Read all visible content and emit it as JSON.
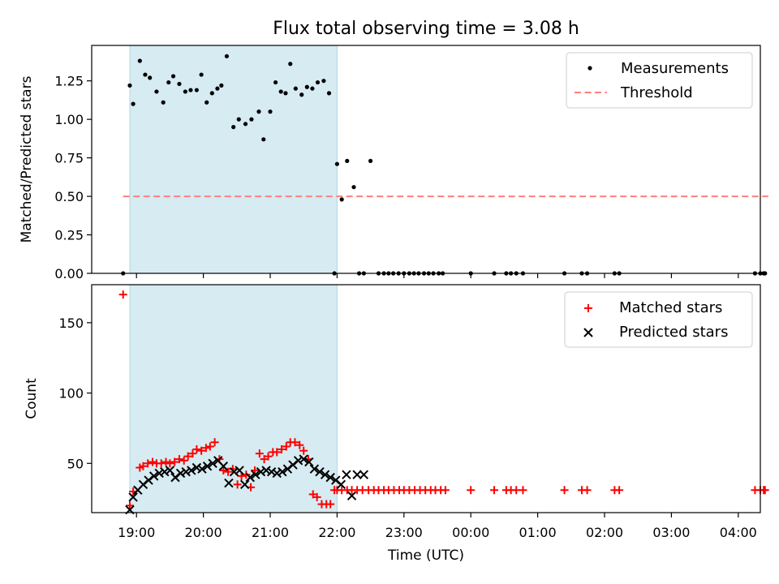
{
  "chart_data": {
    "type": "scatter",
    "title": "Flux total observing time = 3.08 h",
    "xlabel": "Time (UTC)",
    "x_unit": "hours since 19:00 UTC",
    "xlim": [
      -0.67,
      9.33
    ],
    "xticks": [
      {
        "value": 0,
        "label": "19:00"
      },
      {
        "value": 1,
        "label": "20:00"
      },
      {
        "value": 2,
        "label": "21:00"
      },
      {
        "value": 3,
        "label": "22:00"
      },
      {
        "value": 4,
        "label": "23:00"
      },
      {
        "value": 5,
        "label": "00:00"
      },
      {
        "value": 6,
        "label": "01:00"
      },
      {
        "value": 7,
        "label": "02:00"
      },
      {
        "value": 8,
        "label": "03:00"
      },
      {
        "value": 9,
        "label": "04:00"
      }
    ],
    "observing_window": {
      "start": -0.1,
      "end": 3.0,
      "color": "#add8e6"
    },
    "panels": [
      {
        "id": "ratio",
        "ylabel": "Matched/Predicted stars",
        "ylim": [
          0,
          1.48
        ],
        "yticks": [
          {
            "value": 0,
            "label": "0.00"
          },
          {
            "value": 0.25,
            "label": "0.25"
          },
          {
            "value": 0.5,
            "label": "0.50"
          },
          {
            "value": 0.75,
            "label": "0.75"
          },
          {
            "value": 1.0,
            "label": "1.00"
          },
          {
            "value": 1.25,
            "label": "1.25"
          }
        ],
        "legend": [
          {
            "label": "Measurements",
            "marker": "dot",
            "color": "#000000"
          },
          {
            "label": "Threshold",
            "marker": "dashed-line",
            "color": "#ff7f7f"
          }
        ],
        "threshold": {
          "value": 0.5,
          "x_start": -0.2,
          "x_end": 9.45,
          "color": "#ff7f7f"
        },
        "series": [
          {
            "name": "Measurements",
            "x": [
              -0.2,
              -0.1,
              -0.05,
              0.05,
              0.13,
              0.2,
              0.3,
              0.4,
              0.48,
              0.55,
              0.64,
              0.73,
              0.81,
              0.9,
              0.97,
              1.05,
              1.13,
              1.21,
              1.27,
              1.35,
              1.45,
              1.53,
              1.63,
              1.72,
              1.83,
              1.9,
              2.0,
              2.08,
              2.16,
              2.23,
              2.3,
              2.38,
              2.47,
              2.55,
              2.63,
              2.71,
              2.8,
              2.88,
              2.96,
              3.0,
              3.07,
              3.15,
              3.25,
              3.33,
              3.4,
              3.5,
              3.62,
              3.7,
              3.77,
              3.84,
              3.92,
              4.0,
              4.08,
              4.15,
              4.22,
              4.3,
              4.37,
              4.44,
              4.52,
              4.58,
              5.0,
              5.35,
              5.53,
              5.6,
              5.68,
              5.78,
              6.4,
              6.66,
              6.74,
              7.15,
              7.22,
              9.25,
              9.33,
              9.38,
              9.4
            ],
            "y": [
              0,
              1.22,
              1.1,
              1.38,
              1.29,
              1.27,
              1.18,
              1.11,
              1.24,
              1.28,
              1.23,
              1.18,
              1.19,
              1.19,
              1.29,
              1.11,
              1.17,
              1.2,
              1.22,
              1.41,
              0.95,
              1.0,
              0.97,
              1.0,
              1.05,
              0.87,
              1.05,
              1.24,
              1.18,
              1.17,
              1.36,
              1.2,
              1.16,
              1.21,
              1.2,
              1.24,
              1.25,
              1.17,
              0,
              0.71,
              0.48,
              0.73,
              0.56,
              0,
              0,
              0.73,
              0,
              0,
              0,
              0,
              0,
              0,
              0,
              0,
              0,
              0,
              0,
              0,
              0,
              0,
              0,
              0,
              0,
              0,
              0,
              0,
              0,
              0,
              0,
              0,
              0,
              0,
              0,
              0,
              0
            ]
          }
        ]
      },
      {
        "id": "count",
        "ylabel": "Count",
        "ylim": [
          15,
          177
        ],
        "yticks": [
          {
            "value": 50,
            "label": "50"
          },
          {
            "value": 100,
            "label": "100"
          },
          {
            "value": 150,
            "label": "150"
          }
        ],
        "legend": [
          {
            "label": "Matched stars",
            "marker": "plus",
            "color": "#ff0000"
          },
          {
            "label": "Predicted stars",
            "marker": "x",
            "color": "#000000"
          }
        ],
        "series": [
          {
            "name": "Matched stars",
            "marker": "plus",
            "color": "#ff0000",
            "x": [
              -0.2,
              -0.1,
              -0.05,
              0.05,
              0.1,
              0.17,
              0.24,
              0.3,
              0.37,
              0.44,
              0.5,
              0.57,
              0.64,
              0.71,
              0.77,
              0.84,
              0.9,
              0.97,
              1.04,
              1.1,
              1.17,
              1.24,
              1.3,
              1.37,
              1.44,
              1.51,
              1.57,
              1.64,
              1.71,
              1.77,
              1.84,
              1.91,
              1.97,
              2.04,
              2.1,
              2.17,
              2.24,
              2.3,
              2.37,
              2.44,
              2.5,
              2.57,
              2.64,
              2.7,
              2.77,
              2.84,
              2.9,
              2.96,
              3.0,
              3.07,
              3.15,
              3.22,
              3.3,
              3.38,
              3.47,
              3.55,
              3.62,
              3.7,
              3.77,
              3.85,
              3.93,
              4.0,
              4.08,
              4.16,
              4.24,
              4.32,
              4.4,
              4.47,
              4.55,
              4.62,
              5.0,
              5.35,
              5.53,
              5.6,
              5.68,
              5.78,
              6.4,
              6.66,
              6.74,
              7.15,
              7.22,
              9.25,
              9.33,
              9.38,
              9.4
            ],
            "y": [
              170,
              20,
              30,
              47,
              48,
              50,
              51,
              50,
              50,
              51,
              50,
              51,
              53,
              52,
              55,
              57,
              60,
              59,
              61,
              62,
              65,
              53,
              45,
              44,
              46,
              35,
              41,
              42,
              33,
              45,
              57,
              53,
              55,
              58,
              58,
              60,
              62,
              65,
              65,
              63,
              59,
              53,
              28,
              26,
              21,
              21,
              21,
              31,
              31,
              31,
              31,
              31,
              31,
              31,
              31,
              31,
              31,
              31,
              31,
              31,
              31,
              31,
              31,
              31,
              31,
              31,
              31,
              31,
              31,
              31,
              31,
              31,
              31,
              31,
              31,
              31,
              31,
              31,
              31,
              31,
              31,
              31,
              31,
              31,
              31
            ]
          },
          {
            "name": "Predicted stars",
            "marker": "x",
            "color": "#000000",
            "x": [
              -0.1,
              -0.05,
              0.02,
              0.1,
              0.18,
              0.26,
              0.34,
              0.42,
              0.5,
              0.58,
              0.66,
              0.74,
              0.82,
              0.9,
              0.98,
              1.06,
              1.14,
              1.22,
              1.3,
              1.38,
              1.46,
              1.54,
              1.62,
              1.7,
              1.78,
              1.86,
              1.94,
              2.02,
              2.1,
              2.18,
              2.26,
              2.34,
              2.42,
              2.5,
              2.58,
              2.66,
              2.74,
              2.82,
              2.9,
              2.98,
              3.06,
              3.14,
              3.22,
              3.3,
              3.4
            ],
            "y": [
              17,
              26,
              31,
              35,
              38,
              41,
              43,
              44,
              45,
              40,
              43,
              44,
              45,
              47,
              46,
              48,
              50,
              52,
              48,
              36,
              44,
              45,
              35,
              40,
              42,
              44,
              45,
              44,
              43,
              44,
              46,
              49,
              52,
              53,
              51,
              46,
              44,
              42,
              40,
              38,
              35,
              42,
              27,
              42,
              42
            ]
          }
        ]
      }
    ]
  }
}
